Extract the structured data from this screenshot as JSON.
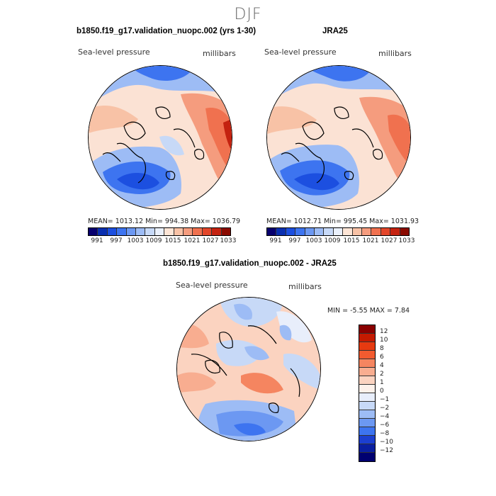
{
  "season": "DJF",
  "panels": {
    "model": {
      "title": "b1850.f19_g17.validation_nuopc.002 (yrs 1-30)",
      "variable": "Sea-level pressure",
      "units": "millibars",
      "stats": "MEAN= 1013.12  Min= 994.38  Max= 1036.79"
    },
    "obs": {
      "title": "JRA25",
      "variable": "Sea-level pressure",
      "units": "millibars",
      "stats": "MEAN= 1012.71  Min= 995.45  Max= 1031.93"
    },
    "diff": {
      "title": "b1850.f19_g17.validation_nuopc.002 - JRA25",
      "variable": "Sea-level pressure",
      "units": "millibars",
      "stats": "MIN =   -5.55 MAX =    7.84"
    }
  },
  "slp_colorbar": {
    "ticks": [
      "991",
      "997",
      "1003",
      "1009",
      "1015",
      "1021",
      "1027",
      "1033"
    ],
    "colors": [
      "#08006e",
      "#0a2fb0",
      "#1c4fe0",
      "#3d74f0",
      "#6c98f2",
      "#9dbcf5",
      "#c7d9f7",
      "#eaf0fb",
      "#fde5d6",
      "#f8c2a6",
      "#f59c7e",
      "#f0714f",
      "#e3462a",
      "#c42210",
      "#8a0a00"
    ]
  },
  "diff_colorbar": {
    "labels": [
      "12",
      "10",
      "8",
      "6",
      "4",
      "2",
      "1",
      "0",
      "−1",
      "−2",
      "−4",
      "−6",
      "−8",
      "−10",
      "−12"
    ],
    "colors": [
      "#8a0000",
      "#c41a00",
      "#e63a10",
      "#f25b30",
      "#f58560",
      "#f8ad90",
      "#fbd3c0",
      "#fdf1ea",
      "#e8eefb",
      "#c7d9f7",
      "#9dbcf5",
      "#6c98f2",
      "#3d74f0",
      "#1c3fd0",
      "#0a1fa0",
      "#000070"
    ]
  }
}
